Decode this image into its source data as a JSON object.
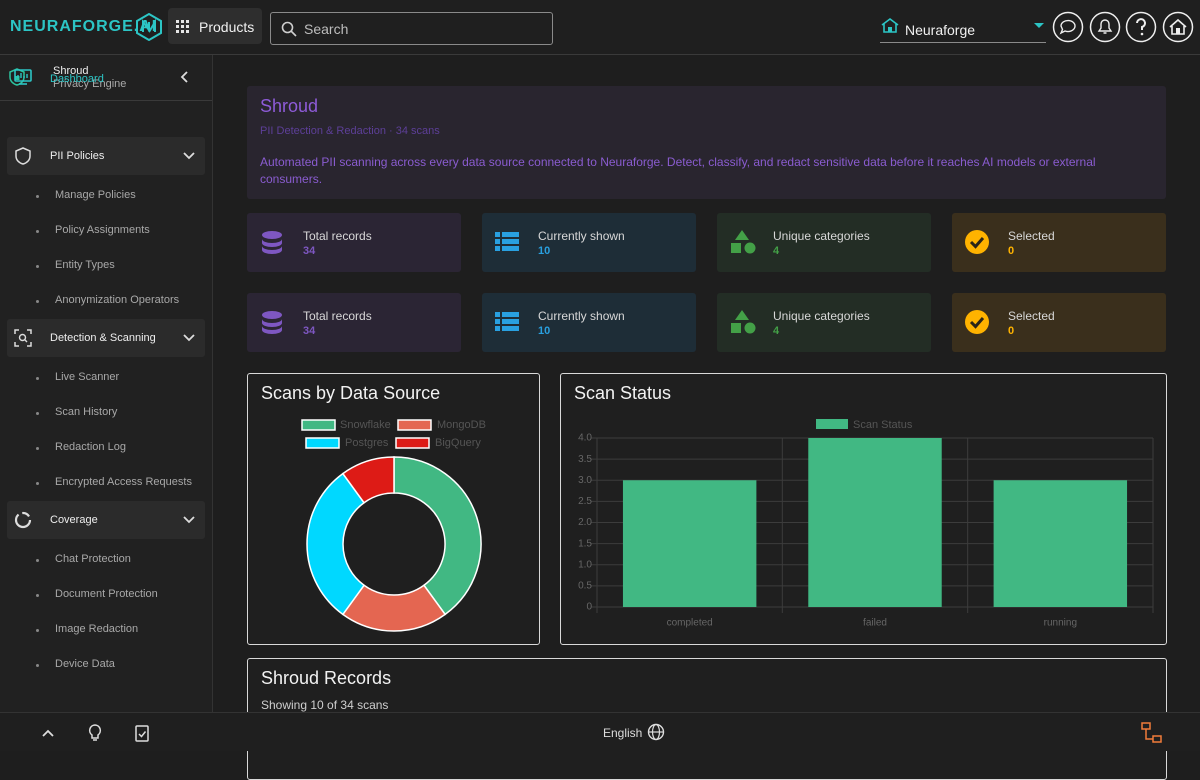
{
  "header": {
    "brand": "NEURAFORGE.AI",
    "products": "Products",
    "search_placeholder": "Search",
    "org": "Neuraforge"
  },
  "sidebar": {
    "app_name": "Shroud",
    "app_subtitle": "Privacy Engine",
    "nav": [
      {
        "label": "Dashboard"
      },
      {
        "label": "PII Policies",
        "children": [
          "Manage Policies",
          "Policy Assignments",
          "Entity Types",
          "Anonymization Operators"
        ]
      },
      {
        "label": "Detection & Scanning",
        "children": [
          "Live Scanner",
          "Scan History",
          "Redaction Log",
          "Encrypted Access Requests"
        ]
      },
      {
        "label": "Coverage",
        "children": [
          "Chat Protection",
          "Document Protection",
          "Image Redaction",
          "Device Data"
        ]
      }
    ]
  },
  "banner": {
    "title": "Shroud",
    "subtitle": "PII Detection & Redaction · 34 scans",
    "description": "Automated PII scanning across every data source connected to Neuraforge. Detect, classify, and redact sensitive data before it reaches AI models or external consumers."
  },
  "stats": [
    [
      {
        "label": "Total records",
        "value": 34
      },
      {
        "label": "Currently shown",
        "value": 10
      },
      {
        "label": "Unique categories",
        "value": 4
      },
      {
        "label": "Selected",
        "value": 0
      }
    ],
    [
      {
        "label": "Total records",
        "value": 34
      },
      {
        "label": "Currently shown",
        "value": 10
      },
      {
        "label": "Unique categories",
        "value": 4
      },
      {
        "label": "Selected",
        "value": 0
      }
    ]
  ],
  "chart_data": [
    {
      "type": "doughnut",
      "title": "Scans by Data Source",
      "categories": [
        "Snowflake",
        "MongoDB",
        "Postgres",
        "BigQuery"
      ],
      "values": [
        4,
        2,
        3,
        1
      ],
      "colors": [
        "#41b883",
        "#e46651",
        "#00d8ff",
        "#dd1b16"
      ]
    },
    {
      "type": "bar",
      "title": "Scan Status",
      "categories": [
        "completed",
        "failed",
        "running"
      ],
      "series": [
        {
          "name": "Scan Status",
          "color": "#41b883",
          "values": [
            3,
            4,
            3
          ]
        }
      ],
      "ylim": [
        0,
        4
      ],
      "yticks": [
        0,
        0.5,
        {
          "value": 1,
          "label": "1.0"
        },
        1.5,
        {
          "value": 2,
          "label": "2.0"
        },
        2.5,
        {
          "value": 3,
          "label": "3.0"
        },
        3.5,
        {
          "value": 4,
          "label": "4.0"
        }
      ],
      "grid": true
    }
  ],
  "records": {
    "title": "Shroud Records",
    "subtitle": "Showing 10 of 34 scans"
  },
  "footer": {
    "language": "English"
  }
}
